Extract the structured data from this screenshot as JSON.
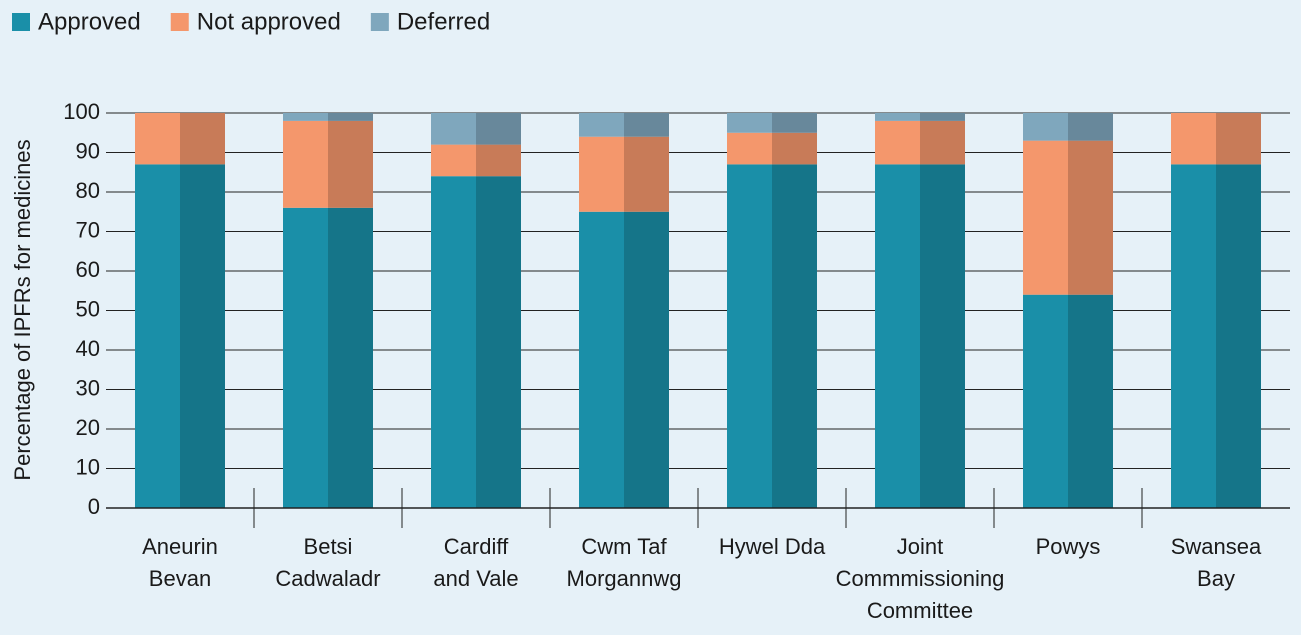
{
  "chart_data": {
    "type": "stacked_bar",
    "y_label": "Percentage of IPFRs for medicines",
    "categories": [
      "Aneurin\nBevan",
      "Betsi\nCadwaladr",
      "Cardiff\nand Vale",
      "Cwm Taf\nMorgannwg",
      "Hywel Dda",
      "Joint\nCommmissioning\nCommittee",
      "Powys",
      "Swansea\nBay"
    ],
    "series": [
      {
        "name": "Approved",
        "color": "#1a8fa8",
        "values": [
          87,
          76,
          84,
          75,
          87,
          87,
          54,
          87
        ]
      },
      {
        "name": "Not approved",
        "color": "#f4976c",
        "values": [
          13,
          22,
          8,
          19,
          8,
          11,
          39,
          13
        ]
      },
      {
        "name": "Deferred",
        "color": "#7fa7bd",
        "values": [
          0,
          2,
          8,
          6,
          5,
          2,
          7,
          0
        ]
      }
    ],
    "ylim": [
      0,
      100
    ],
    "yticks": [
      0,
      10,
      20,
      30,
      40,
      50,
      60,
      70,
      80,
      90,
      100
    ],
    "grid": true,
    "legend": "top-left"
  }
}
